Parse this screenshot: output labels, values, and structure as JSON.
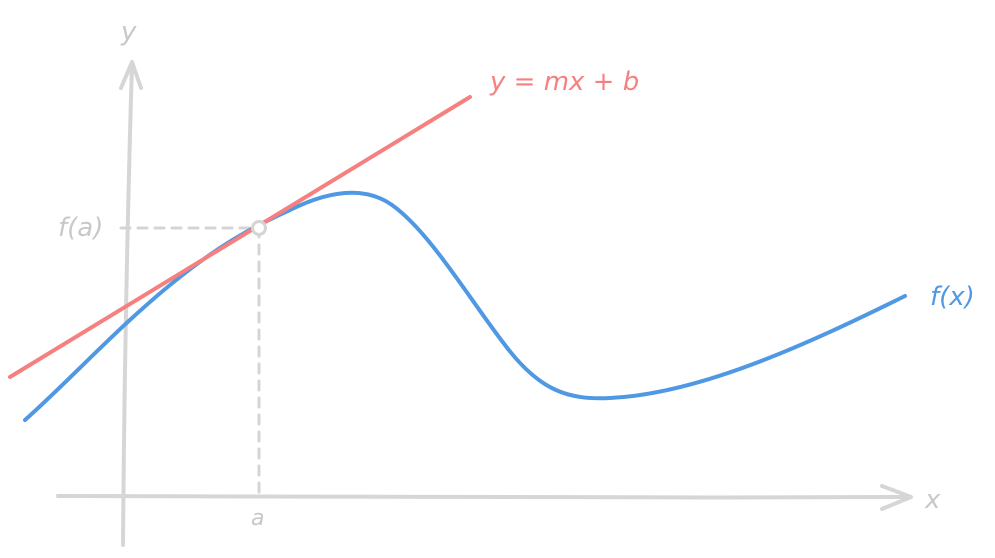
{
  "diagram": {
    "axis_labels": {
      "x": "x",
      "y": "y"
    },
    "point_labels": {
      "x_value": "a",
      "y_value": "f(a)"
    },
    "curve_labels": {
      "function": "f(x)",
      "tangent": "y = mx + b"
    },
    "colors": {
      "axis": "#d6d6d6",
      "axis_text": "#c8c8c8",
      "function_curve": "#4f98e3",
      "tangent_line": "#f67f80",
      "guide": "#d4d4d4"
    },
    "icon_names": {
      "point_marker": "tangent-point-marker"
    }
  }
}
